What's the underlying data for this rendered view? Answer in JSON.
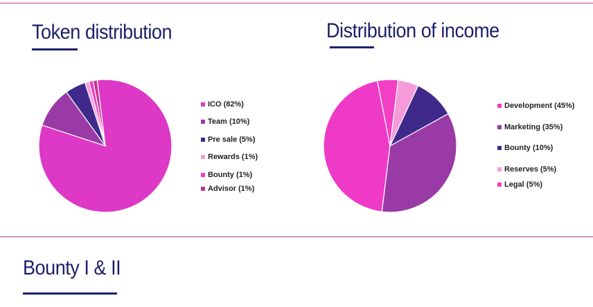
{
  "sections": {
    "token_title": "Token distribution",
    "income_title": "Distribution of income",
    "bounty_title": "Bounty I & II"
  },
  "colors": {
    "title": "#1b1f6b",
    "divider": "#a23ea0"
  },
  "chart_data": [
    {
      "type": "pie",
      "title": "Token distribution",
      "labels": [
        "ICO (82%)",
        "Team (10%)",
        "Pre sale (5%)",
        "Rewards (1%)",
        "Bounty (1%)",
        "Advisor (1%)"
      ],
      "categories": [
        "ICO",
        "Team",
        "Pre sale",
        "Rewards",
        "Bounty",
        "Advisor"
      ],
      "values": [
        82,
        10,
        5,
        1,
        1,
        1
      ],
      "colors": [
        "#dd38c6",
        "#9a3aa6",
        "#3f2a8c",
        "#f59bd9",
        "#f23fc4",
        "#c2388f"
      ],
      "legend": "right"
    },
    {
      "type": "pie",
      "title": "Distribution of income",
      "labels": [
        "Development (45%)",
        "Marketing (35%)",
        "Bounty (10%)",
        "Reserves (5%)",
        "Legal (5%)"
      ],
      "categories": [
        "Development",
        "Marketing",
        "Bounty",
        "Reserves",
        "Legal"
      ],
      "values": [
        45,
        35,
        10,
        5,
        5
      ],
      "colors": [
        "#ee3ac7",
        "#9a3aa6",
        "#3f2a8c",
        "#f59bd9",
        "#f23fc4"
      ],
      "legend": "right"
    }
  ]
}
